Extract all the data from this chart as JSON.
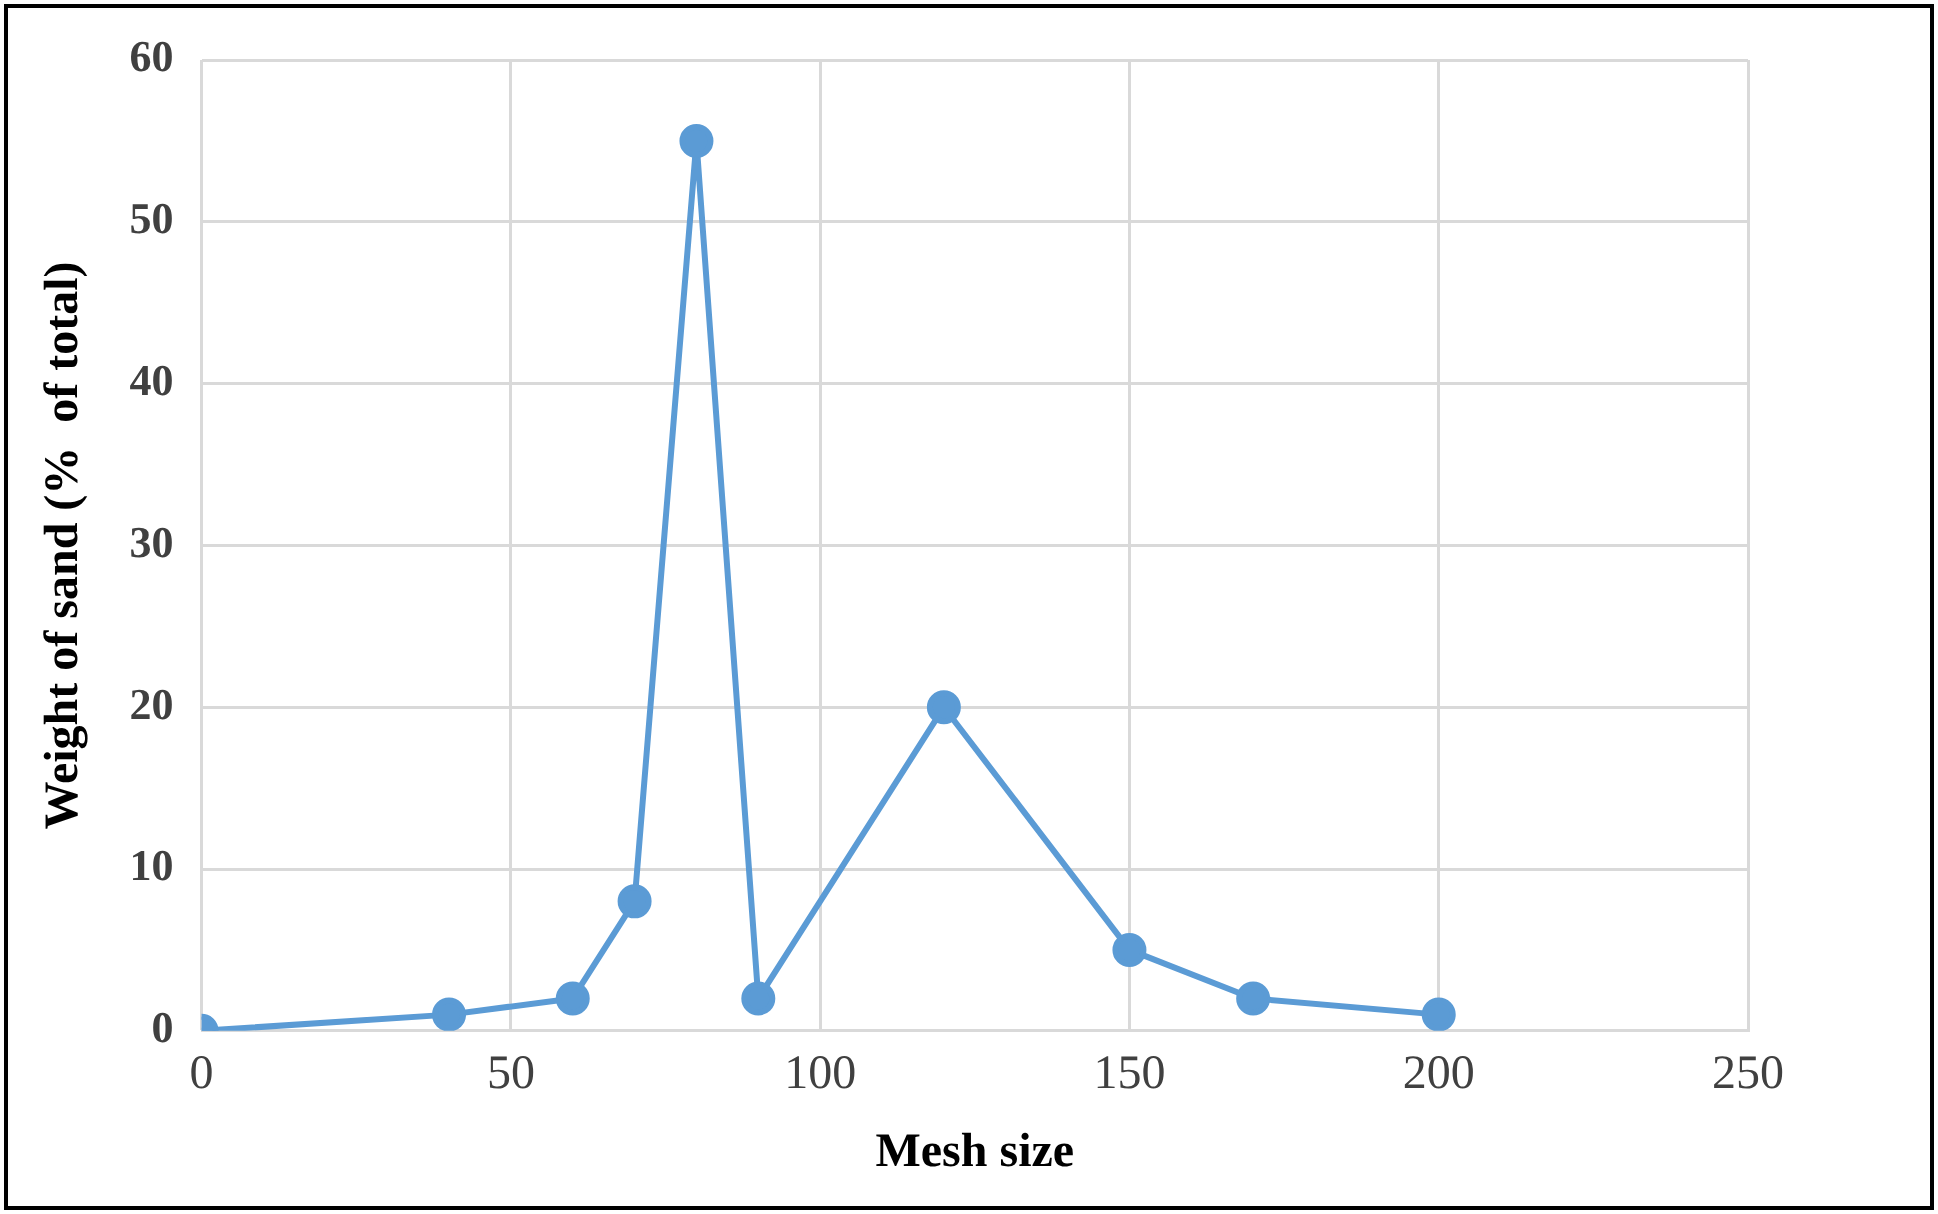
{
  "chart_data": {
    "type": "line",
    "xlabel": "Mesh size",
    "ylabel": "Weight of sand (%  of total)",
    "x": [
      0,
      40,
      60,
      70,
      80,
      90,
      120,
      150,
      170,
      200
    ],
    "series": [
      {
        "color": "#5b9bd5",
        "values": [
          0,
          1,
          2,
          8,
          55,
          2,
          20,
          5,
          2,
          1
        ]
      }
    ],
    "xlim": [
      0,
      250
    ],
    "xticks": [
      0,
      50,
      100,
      150,
      200,
      250
    ],
    "ylim": [
      0,
      60
    ],
    "yticks": [
      0,
      10,
      20,
      30,
      40,
      50,
      60
    ],
    "grid": true,
    "legend": false,
    "marker": "circle",
    "line_style": "solid"
  }
}
